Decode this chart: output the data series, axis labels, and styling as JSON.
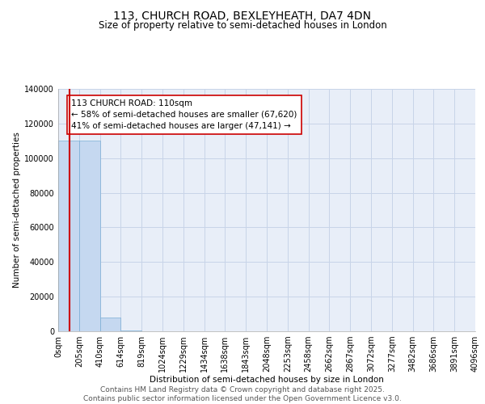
{
  "title": "113, CHURCH ROAD, BEXLEYHEATH, DA7 4DN",
  "subtitle": "Size of property relative to semi-detached houses in London",
  "xlabel": "Distribution of semi-detached houses by size in London",
  "ylabel": "Number of semi-detached properties",
  "property_size": 110,
  "annotation_title": "113 CHURCH ROAD: 110sqm",
  "annotation_line1": "← 58% of semi-detached houses are smaller (67,620)",
  "annotation_line2": "41% of semi-detached houses are larger (47,141) →",
  "footer": "Contains HM Land Registry data © Crown copyright and database right 2025.\nContains public sector information licensed under the Open Government Licence v3.0.",
  "bin_edges": [
    0,
    205,
    410,
    614,
    819,
    1024,
    1229,
    1434,
    1638,
    1843,
    2048,
    2253,
    2458,
    2662,
    2867,
    3072,
    3277,
    3482,
    3686,
    3891,
    4096
  ],
  "bin_labels": [
    "0sqm",
    "205sqm",
    "410sqm",
    "614sqm",
    "819sqm",
    "1024sqm",
    "1229sqm",
    "1434sqm",
    "1638sqm",
    "1843sqm",
    "2048sqm",
    "2253sqm",
    "2458sqm",
    "2662sqm",
    "2867sqm",
    "3072sqm",
    "3277sqm",
    "3482sqm",
    "3686sqm",
    "3891sqm",
    "4096sqm"
  ],
  "bar_heights": [
    110000,
    110000,
    8000,
    500,
    200,
    100,
    50,
    30,
    20,
    15,
    10,
    8,
    6,
    5,
    4,
    3,
    3,
    2,
    2,
    1
  ],
  "bar_color": "#c5d8f0",
  "bar_edge_color": "#7aadd4",
  "vline_color": "#cc0000",
  "vline_x": 110,
  "ylim": [
    0,
    140000
  ],
  "yticks": [
    0,
    20000,
    40000,
    60000,
    80000,
    100000,
    120000,
    140000
  ],
  "grid_color": "#c8d4e8",
  "background_color": "#e8eef8",
  "title_fontsize": 10,
  "subtitle_fontsize": 8.5,
  "annotation_fontsize": 7.5,
  "footer_fontsize": 6.5,
  "axis_label_fontsize": 7.5,
  "tick_fontsize": 7
}
